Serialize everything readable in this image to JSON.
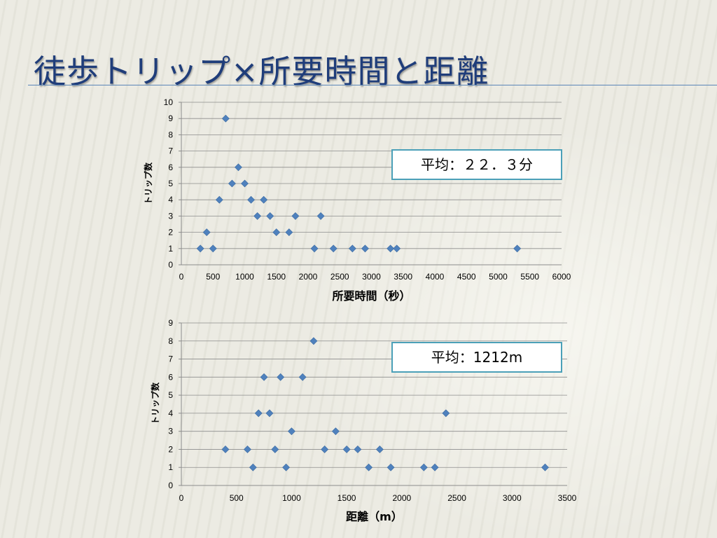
{
  "slide": {
    "title": "徒歩トリップ×所要時間と距離"
  },
  "chart_data": [
    {
      "type": "scatter",
      "title": "",
      "xlabel": "所要時間（秒）",
      "ylabel": "トリップ数",
      "xlim": [
        0,
        6000
      ],
      "ylim": [
        0,
        10
      ],
      "xticks": [
        0,
        500,
        1000,
        1500,
        2000,
        2500,
        3000,
        3500,
        4000,
        4500,
        5000,
        5500,
        6000
      ],
      "yticks": [
        0,
        1,
        2,
        3,
        4,
        5,
        6,
        7,
        8,
        9,
        10
      ],
      "grid": true,
      "marker": "diamond",
      "color": "#4f81bd",
      "annotation": "平均：２２．３分",
      "points": [
        {
          "x": 300,
          "y": 1
        },
        {
          "x": 400,
          "y": 2
        },
        {
          "x": 500,
          "y": 1
        },
        {
          "x": 600,
          "y": 4
        },
        {
          "x": 700,
          "y": 9
        },
        {
          "x": 800,
          "y": 5
        },
        {
          "x": 900,
          "y": 6
        },
        {
          "x": 1000,
          "y": 5
        },
        {
          "x": 1100,
          "y": 4
        },
        {
          "x": 1200,
          "y": 3
        },
        {
          "x": 1300,
          "y": 4
        },
        {
          "x": 1400,
          "y": 3
        },
        {
          "x": 1500,
          "y": 2
        },
        {
          "x": 1700,
          "y": 2
        },
        {
          "x": 1800,
          "y": 3
        },
        {
          "x": 2100,
          "y": 1
        },
        {
          "x": 2200,
          "y": 3
        },
        {
          "x": 2400,
          "y": 1
        },
        {
          "x": 2700,
          "y": 1
        },
        {
          "x": 2900,
          "y": 1
        },
        {
          "x": 3300,
          "y": 1
        },
        {
          "x": 3400,
          "y": 1
        },
        {
          "x": 5300,
          "y": 1
        }
      ]
    },
    {
      "type": "scatter",
      "title": "",
      "xlabel": "距離（m）",
      "ylabel": "トリップ数",
      "xlim": [
        0,
        3500
      ],
      "ylim": [
        0,
        9
      ],
      "xticks": [
        0,
        500,
        1000,
        1500,
        2000,
        2500,
        3000,
        3500
      ],
      "yticks": [
        0,
        1,
        2,
        3,
        4,
        5,
        6,
        7,
        8,
        9
      ],
      "grid": true,
      "marker": "diamond",
      "color": "#4f81bd",
      "annotation": "平均：1212m",
      "points": [
        {
          "x": 400,
          "y": 2
        },
        {
          "x": 600,
          "y": 2
        },
        {
          "x": 650,
          "y": 1
        },
        {
          "x": 700,
          "y": 4
        },
        {
          "x": 750,
          "y": 6
        },
        {
          "x": 800,
          "y": 4
        },
        {
          "x": 850,
          "y": 2
        },
        {
          "x": 900,
          "y": 6
        },
        {
          "x": 950,
          "y": 1
        },
        {
          "x": 1000,
          "y": 3
        },
        {
          "x": 1100,
          "y": 6
        },
        {
          "x": 1200,
          "y": 8
        },
        {
          "x": 1300,
          "y": 2
        },
        {
          "x": 1400,
          "y": 3
        },
        {
          "x": 1500,
          "y": 2
        },
        {
          "x": 1600,
          "y": 2
        },
        {
          "x": 1700,
          "y": 1
        },
        {
          "x": 1800,
          "y": 2
        },
        {
          "x": 1900,
          "y": 1
        },
        {
          "x": 2200,
          "y": 1
        },
        {
          "x": 2300,
          "y": 1
        },
        {
          "x": 2400,
          "y": 4
        },
        {
          "x": 3300,
          "y": 1
        }
      ]
    }
  ]
}
